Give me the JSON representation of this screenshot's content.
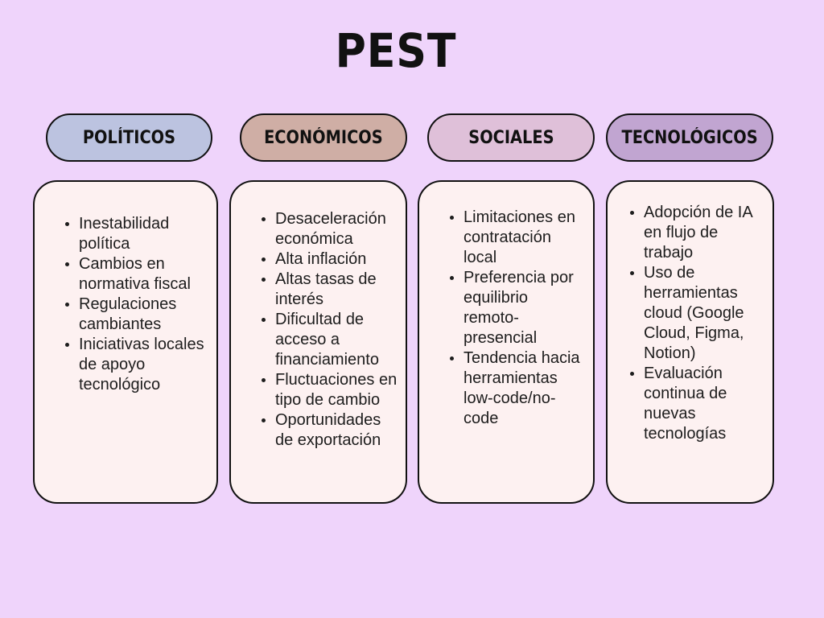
{
  "title": "PEST",
  "columns": [
    {
      "header": "POLÍTICOS",
      "header_color": "#bcc3e0",
      "items": [
        "Inestabilidad política",
        "Cambios en normativa fiscal",
        "Regulaciones cambiantes",
        "Iniciativas locales de apoyo tecnológico"
      ]
    },
    {
      "header": "ECONÓMICOS",
      "header_color": "#cfaea5",
      "items": [
        "Desaceleración económica",
        "Alta inflación",
        "Altas tasas de interés",
        "Dificultad de acceso a financiamiento",
        "Fluctuaciones en tipo de cambio",
        "Oportunidades de exportación"
      ]
    },
    {
      "header": "SOCIALES",
      "header_color": "#dfc0d9",
      "items": [
        "Limitaciones en contratación local",
        "Preferencia por equilibrio remoto-presencial",
        "Tendencia hacia herramientas low-code/no-code"
      ]
    },
    {
      "header": "TECNOLÓGICOS",
      "header_color": "#c1a5d1",
      "items": [
        "Adopción de IA en flujo de trabajo",
        "Uso de herramientas cloud (Google Cloud, Figma, Notion)",
        "Evaluación continua de nuevas tecnologías"
      ]
    }
  ]
}
